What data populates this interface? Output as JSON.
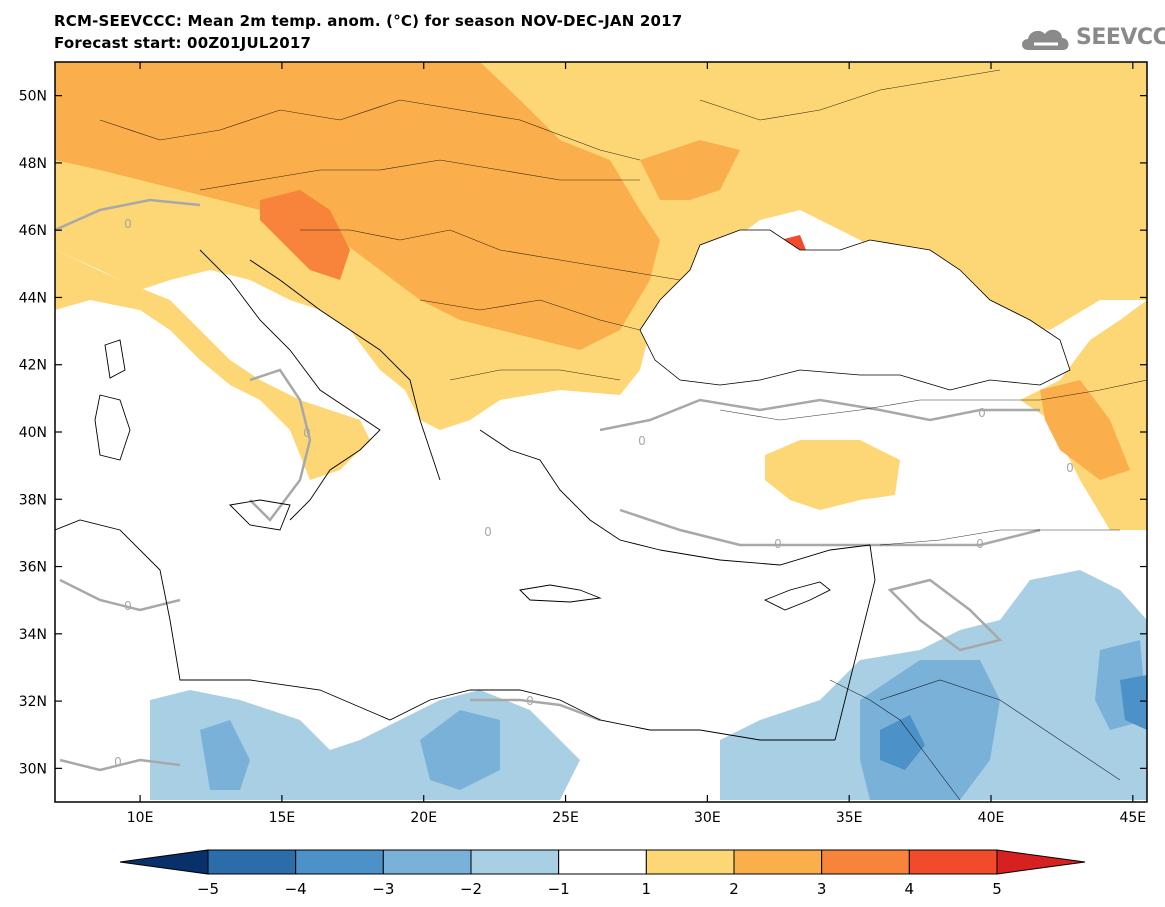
{
  "header": {
    "title": "RCM-SEEVCCC: Mean 2m temp. anom. (°C) for season NOV-DEC-JAN 2017",
    "subtitle": "Forecast start: 00Z01JUL2017"
  },
  "logo": {
    "text": "SEEVCCC",
    "icon": "cloud-icon"
  },
  "map": {
    "lat_labels": [
      "50N",
      "48N",
      "46N",
      "44N",
      "42N",
      "40N",
      "38N",
      "36N",
      "34N",
      "32N",
      "30N"
    ],
    "lat_values": [
      50,
      48,
      46,
      44,
      42,
      40,
      38,
      36,
      34,
      32,
      30
    ],
    "lon_labels": [
      "10E",
      "15E",
      "20E",
      "25E",
      "30E",
      "35E",
      "40E",
      "45E"
    ],
    "lon_values": [
      10,
      15,
      20,
      25,
      30,
      35,
      40,
      45
    ],
    "lon_range": [
      7,
      45.5
    ],
    "lat_range": [
      29,
      51
    ],
    "contour_label": "0"
  },
  "colorbar": {
    "ticks": [
      "−5",
      "−4",
      "−3",
      "−2",
      "−1",
      "1",
      "2",
      "3",
      "4",
      "5"
    ],
    "colors": [
      "#08306b",
      "#2b6da8",
      "#4c91c7",
      "#7ab1d9",
      "#a9cfe5",
      "#ffffff",
      "#fdd775",
      "#fbae4c",
      "#f8843c",
      "#f24b2b",
      "#d72020"
    ]
  }
}
